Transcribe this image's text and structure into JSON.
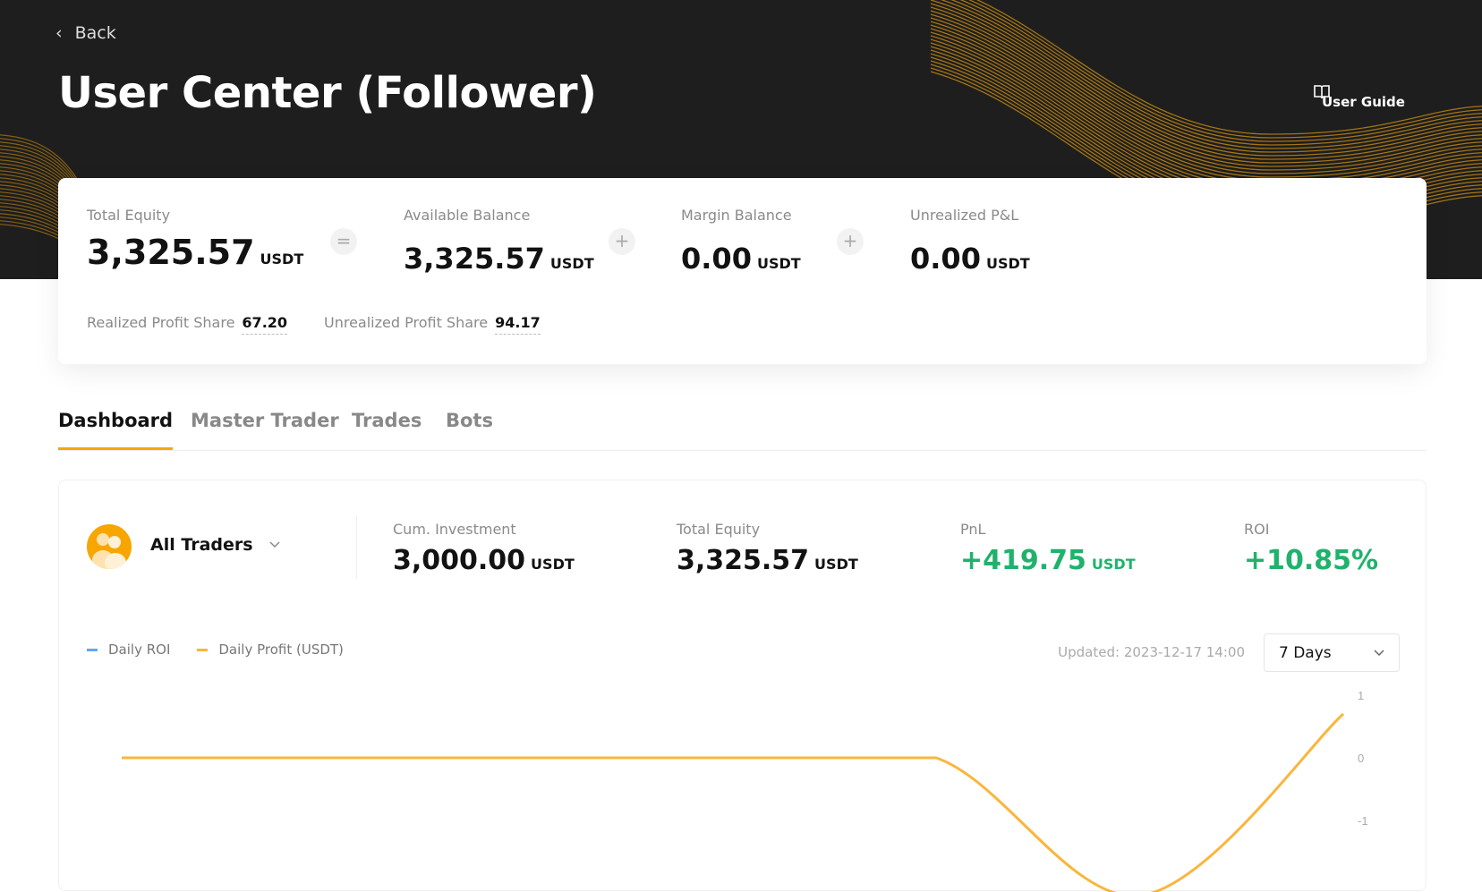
{
  "header": {
    "back_label": "Back",
    "title": "User Center (Follower)",
    "user_guide_label": "User Guide"
  },
  "summary": {
    "total_equity": {
      "label": "Total Equity",
      "value": "3,325.57",
      "unit": "USDT"
    },
    "available_balance": {
      "label": "Available Balance",
      "value": "3,325.57",
      "unit": "USDT"
    },
    "margin_balance": {
      "label": "Margin Balance",
      "value": "0.00",
      "unit": "USDT"
    },
    "unrealized_pnl": {
      "label": "Unrealized P&L",
      "value": "0.00",
      "unit": "USDT"
    },
    "op_equals": "=",
    "op_plus": "+",
    "realized_profit_share": {
      "label": "Realized Profit Share",
      "value": "67.20"
    },
    "unrealized_profit_share": {
      "label": "Unrealized Profit Share",
      "value": "94.17"
    }
  },
  "tabs": [
    {
      "label": "Dashboard",
      "active": true
    },
    {
      "label": "Master Trader"
    },
    {
      "label": "Trades"
    },
    {
      "label": "Bots"
    }
  ],
  "dashboard": {
    "trader_select": "All Traders",
    "stats": [
      {
        "label": "Cum. Investment",
        "value": "3,000.00",
        "unit": "USDT"
      },
      {
        "label": "Total Equity",
        "value": "3,325.57",
        "unit": "USDT"
      },
      {
        "label": "PnL",
        "value": "+419.75",
        "unit": "USDT"
      },
      {
        "label": "ROI",
        "value": "+10.85%",
        "unit": ""
      }
    ],
    "updated": "Updated: 2023-12-17 14:00",
    "range_select": "7 Days"
  },
  "colors": {
    "accent": "#f7a600",
    "positive": "#20b26c",
    "roi_series": "#5fa8f5",
    "profit_series": "#fbb53b"
  },
  "chart_data": {
    "type": "line",
    "series": [
      {
        "name": "Daily ROI",
        "values": []
      },
      {
        "name": "Daily Profit (USDT)",
        "values": [
          0,
          0,
          0,
          0,
          0,
          -2.2,
          0.7
        ]
      }
    ],
    "y_ticks": [
      "1",
      "0",
      "-1"
    ],
    "grid": false,
    "legend": "top-left"
  }
}
